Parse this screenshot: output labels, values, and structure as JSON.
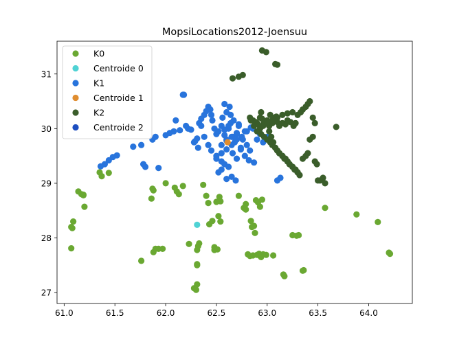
{
  "chart_data": {
    "type": "scatter",
    "title": "MopsiLocations2012-Joensuu",
    "xlabel": "",
    "ylabel": "",
    "xlim": [
      60.93,
      64.43
    ],
    "ylim": [
      26.8,
      31.6
    ],
    "xticks": [
      "61.0",
      "61.5",
      "62.0",
      "62.5",
      "63.0",
      "63.5",
      "64.0"
    ],
    "xtick_values": [
      61.0,
      61.5,
      62.0,
      62.5,
      63.0,
      63.5,
      64.0
    ],
    "yticks": [
      "27",
      "28",
      "29",
      "30",
      "31"
    ],
    "ytick_values": [
      27,
      28,
      29,
      30,
      31
    ],
    "grid": false,
    "legend_position": "top-left",
    "series": [
      {
        "name": "K0",
        "color": "#6aa832",
        "x": [
          61.07,
          61.08,
          61.09,
          61.07,
          61.14,
          61.17,
          61.19,
          61.2,
          61.19,
          61.37,
          61.35,
          61.44,
          61.76,
          61.86,
          61.88,
          61.87,
          61.88,
          61.9,
          61.93,
          61.97,
          62.0,
          62.09,
          62.11,
          62.13,
          62.17,
          62.23,
          62.28,
          62.3,
          62.31,
          62.33,
          62.32,
          62.31,
          62.31,
          62.31,
          62.37,
          62.4,
          62.42,
          62.43,
          62.46,
          62.48,
          62.48,
          62.51,
          62.5,
          62.53,
          62.54,
          62.52,
          62.54,
          62.72,
          62.77,
          62.79,
          62.79,
          62.81,
          62.83,
          62.84,
          62.85,
          62.87,
          62.88,
          62.86,
          62.89,
          62.91,
          62.93,
          62.95,
          62.93,
          62.96,
          62.99,
          62.94,
          62.9,
          62.92,
          63.06,
          63.16,
          63.17,
          63.25,
          63.29,
          63.31,
          63.35,
          63.36,
          63.57,
          63.88,
          64.09,
          64.2,
          64.21
        ],
        "y": [
          28.2,
          28.18,
          28.3,
          27.81,
          28.85,
          28.8,
          28.79,
          28.57,
          28.78,
          29.13,
          29.2,
          29.19,
          27.58,
          28.72,
          28.87,
          28.9,
          27.74,
          27.8,
          27.8,
          27.8,
          29.0,
          28.92,
          28.85,
          28.8,
          28.95,
          27.89,
          27.08,
          27.05,
          27.15,
          27.9,
          27.85,
          27.5,
          27.52,
          27.78,
          28.97,
          28.77,
          28.64,
          28.25,
          28.31,
          27.83,
          27.78,
          27.79,
          28.66,
          28.75,
          28.67,
          28.4,
          28.3,
          28.77,
          28.55,
          28.62,
          28.52,
          27.7,
          27.67,
          28.31,
          28.2,
          28.22,
          28.09,
          27.68,
          28.69,
          28.65,
          28.57,
          28.7,
          27.67,
          27.7,
          27.69,
          27.65,
          27.69,
          27.71,
          27.68,
          27.33,
          27.3,
          28.05,
          28.04,
          28.05,
          27.4,
          27.41,
          28.55,
          28.43,
          28.29,
          27.73,
          27.71
        ]
      },
      {
        "name": "Centroide 0",
        "color": "#4fd2d4",
        "x": [
          62.31
        ],
        "y": [
          28.24
        ]
      },
      {
        "name": "K1",
        "color": "#2874dc",
        "x": [
          61.36,
          61.4,
          61.44,
          61.48,
          61.52,
          61.68,
          61.76,
          61.78,
          61.8,
          61.87,
          61.9,
          61.93,
          62.0,
          62.04,
          62.08,
          62.1,
          62.14,
          62.17,
          62.18,
          62.2,
          62.22,
          62.25,
          62.28,
          62.31,
          62.33,
          62.35,
          62.38,
          62.4,
          62.42,
          62.44,
          62.45,
          62.46,
          62.48,
          62.5,
          62.52,
          62.55,
          62.58,
          62.6,
          62.62,
          62.64,
          62.66,
          62.68,
          62.7,
          62.72,
          62.74,
          62.76,
          62.78,
          62.8,
          62.83,
          62.86,
          62.9,
          62.93,
          62.96,
          63.0,
          63.1,
          63.13,
          62.35,
          62.38,
          62.42,
          62.45,
          62.5,
          62.55,
          62.58,
          62.62,
          62.66,
          62.7,
          62.74,
          62.78,
          62.82,
          62.87,
          62.32,
          62.29,
          62.5,
          62.55,
          62.6,
          62.65,
          62.7,
          62.75,
          62.56,
          62.6,
          62.63,
          62.58,
          62.64,
          62.67,
          62.72,
          62.8,
          62.84,
          62.52,
          62.55,
          62.6,
          62.65,
          62.69,
          62.55,
          62.6,
          62.65,
          62.7,
          62.58,
          62.62
        ],
        "y": [
          29.31,
          29.35,
          29.42,
          29.48,
          29.51,
          29.67,
          29.7,
          29.35,
          29.3,
          29.8,
          29.85,
          29.28,
          29.88,
          29.92,
          29.95,
          30.15,
          29.97,
          30.62,
          30.62,
          30.05,
          30.0,
          29.98,
          29.75,
          29.82,
          30.1,
          30.18,
          30.25,
          30.32,
          30.4,
          30.35,
          30.25,
          30.15,
          30.0,
          29.9,
          29.95,
          30.05,
          29.88,
          29.8,
          30.0,
          30.1,
          29.85,
          29.75,
          29.9,
          30.05,
          29.65,
          29.8,
          29.95,
          29.7,
          29.6,
          30.0,
          29.8,
          29.9,
          29.75,
          29.85,
          29.05,
          29.1,
          30.05,
          29.85,
          29.7,
          29.6,
          29.5,
          29.4,
          29.35,
          29.3,
          29.55,
          29.45,
          29.62,
          29.5,
          29.42,
          29.38,
          29.65,
          29.77,
          29.45,
          29.55,
          29.62,
          29.7,
          29.8,
          29.85,
          30.2,
          30.3,
          30.4,
          30.45,
          30.25,
          30.15,
          30.08,
          29.95,
          30.02,
          29.2,
          29.25,
          29.08,
          29.12,
          29.05,
          29.7,
          29.78,
          29.85,
          29.92,
          29.98,
          30.05
        ]
      },
      {
        "name": "Centroide 1",
        "color": "#e08d2f",
        "x": [
          62.61
        ],
        "y": [
          29.75
        ]
      },
      {
        "name": "K2",
        "color": "#3a5d2a",
        "x": [
          62.66,
          62.72,
          62.76,
          62.83,
          62.86,
          62.9,
          62.94,
          62.95,
          62.99,
          63.03,
          63.08,
          63.09,
          63.1,
          62.84,
          62.87,
          62.89,
          62.91,
          62.93,
          62.95,
          62.97,
          63.0,
          63.02,
          63.05,
          63.07,
          63.1,
          63.12,
          63.15,
          63.18,
          63.2,
          63.23,
          63.26,
          63.28,
          63.3,
          63.33,
          63.35,
          63.38,
          63.4,
          63.42,
          63.45,
          63.47,
          63.68,
          63.02,
          63.04,
          63.06,
          63.08,
          63.1,
          63.12,
          63.15,
          63.18,
          63.2,
          63.22,
          63.25,
          63.27,
          63.3,
          63.32,
          63.35,
          63.38,
          63.4,
          63.42,
          63.45,
          63.47,
          63.49,
          63.5,
          63.52,
          63.55,
          63.57,
          63.3,
          63.28,
          63.25,
          63.22,
          63.2,
          63.17,
          63.15,
          63.12,
          63.1,
          63.08,
          63.05,
          63.03,
          63.0,
          62.97,
          62.94,
          62.9,
          62.93,
          62.96,
          63.0,
          63.05,
          63.1,
          63.15,
          63.2,
          63.25
        ],
        "y": [
          30.92,
          30.95,
          30.98,
          30.2,
          30.15,
          30.1,
          30.3,
          31.43,
          31.4,
          30.25,
          31.18,
          30.22,
          31.17,
          30.15,
          30.05,
          30.12,
          30.08,
          30.2,
          30.18,
          30.1,
          30.15,
          30.05,
          30.1,
          30.2,
          30.12,
          30.05,
          30.1,
          30.08,
          30.15,
          30.12,
          30.05,
          30.1,
          30.25,
          30.3,
          30.35,
          30.4,
          30.45,
          30.5,
          30.2,
          30.1,
          30.03,
          29.95,
          29.85,
          29.75,
          29.65,
          29.6,
          29.55,
          29.5,
          29.45,
          29.4,
          29.35,
          29.3,
          29.25,
          29.2,
          29.15,
          29.45,
          29.5,
          29.55,
          29.8,
          29.85,
          29.4,
          29.35,
          29.05,
          29.05,
          29.1,
          29.0,
          29.2,
          29.25,
          29.3,
          29.35,
          29.4,
          29.45,
          29.5,
          29.55,
          29.6,
          29.65,
          29.7,
          29.75,
          29.8,
          29.85,
          29.9,
          29.95,
          30.0,
          30.05,
          30.1,
          30.15,
          30.2,
          30.25,
          30.28,
          30.3
        ]
      },
      {
        "name": "Centroide 2",
        "color": "#1d4ec0",
        "x": [],
        "y": []
      }
    ]
  }
}
